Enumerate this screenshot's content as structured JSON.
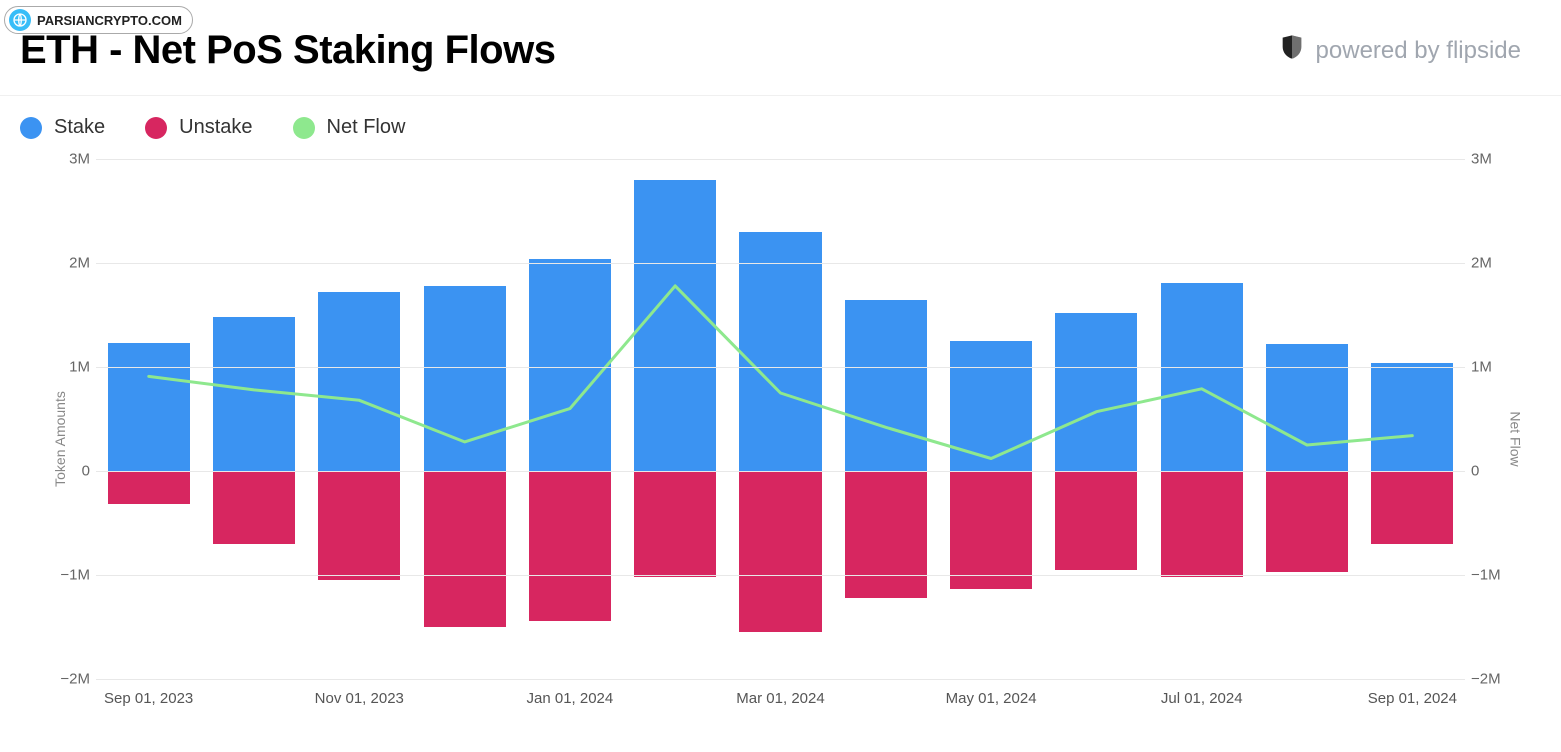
{
  "watermark": {
    "text": "PARSIANCRYPTO.COM",
    "icon_color": "#38bdf8"
  },
  "header": {
    "title": "ETH - Net PoS Staking Flows",
    "powered_by": "powered by flipside",
    "powered_color": "#a0a6af"
  },
  "legend": {
    "items": [
      {
        "label": "Stake",
        "color": "#3b93f2",
        "kind": "bar"
      },
      {
        "label": "Unstake",
        "color": "#d72660",
        "kind": "bar"
      },
      {
        "label": "Net Flow",
        "color": "#8ee88e",
        "kind": "line"
      }
    ]
  },
  "chart": {
    "type": "bar+line",
    "background_color": "#ffffff",
    "grid_color": "#e8e8e8",
    "y_left": {
      "label": "Token Amounts",
      "min": -2000000,
      "max": 3000000,
      "ticks": [
        -2000000,
        -1000000,
        0,
        1000000,
        2000000,
        3000000
      ],
      "tick_labels": [
        "−2M",
        "−1M",
        "0",
        "1M",
        "2M",
        "3M"
      ]
    },
    "y_right": {
      "label": "Net Flow",
      "min": -2000000,
      "max": 3000000,
      "ticks": [
        -2000000,
        -1000000,
        0,
        1000000,
        2000000,
        3000000
      ],
      "tick_labels": [
        "−2M",
        "−1M",
        "0",
        "1M",
        "2M",
        "3M"
      ]
    },
    "x_ticks": [
      "Sep 01, 2023",
      "Nov 01, 2023",
      "Jan 01, 2024",
      "Mar 01, 2024",
      "May 01, 2024",
      "Jul 01, 2024",
      "Sep 01, 2024"
    ],
    "x_tick_indices": [
      0,
      2,
      4,
      6,
      8,
      10,
      12
    ],
    "categories": [
      "Sep 2023",
      "Oct 2023",
      "Nov 2023",
      "Dec 2023",
      "Jan 2024",
      "Feb 2024",
      "Mar 2024",
      "Apr 2024",
      "May 2024",
      "Jun 2024",
      "Jul 2024",
      "Aug 2024",
      "Sep 2024"
    ],
    "series": {
      "stake": {
        "color": "#3b93f2",
        "values": [
          1230000,
          1480000,
          1720000,
          1780000,
          2040000,
          2800000,
          2300000,
          1640000,
          1250000,
          1520000,
          1810000,
          1220000,
          1040000
        ]
      },
      "unstake": {
        "color": "#d72660",
        "values": [
          -320000,
          -700000,
          -1050000,
          -1500000,
          -1440000,
          -1020000,
          -1550000,
          -1220000,
          -1130000,
          -950000,
          -1020000,
          -970000,
          -700000
        ]
      },
      "netflow": {
        "color": "#8ee88e",
        "line_width": 3,
        "values": [
          910000,
          780000,
          680000,
          280000,
          600000,
          1780000,
          750000,
          420000,
          120000,
          570000,
          790000,
          250000,
          340000
        ]
      }
    },
    "bar_width_ratio": 0.78,
    "tick_font_size": 15,
    "tick_color": "#666",
    "axis_label_font_size": 14,
    "axis_label_color": "#888"
  }
}
